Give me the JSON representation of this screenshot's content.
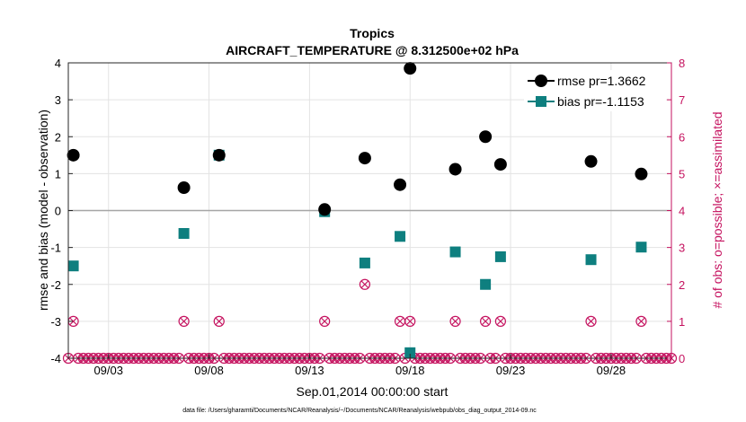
{
  "chart_data": {
    "type": "scatter",
    "title": "Tropics",
    "subtitle": "AIRCRAFT_TEMPERATURE @ 8.312500e+02 hPa",
    "xlabel": "Sep.01,2014 00:00:00 start",
    "ylabel": "rmse and bias (model - observation)",
    "ylabel_right": "# of obs: o=possible; ×=assimilated",
    "footnote": "data file: /Users/gharamti/Documents/NCAR/Reanalysis/~/Documents/NCAR/Reanalysis/webpub/obs_diag_output_2014-09.nc",
    "xlim": [
      1.0,
      31.0
    ],
    "ylim": [
      -4,
      4
    ],
    "ylim_right": [
      0,
      8
    ],
    "x_ticks": [
      3,
      8,
      13,
      18,
      23,
      28
    ],
    "x_tick_labels": [
      "09/03",
      "09/08",
      "09/13",
      "09/18",
      "09/23",
      "09/28"
    ],
    "y_ticks": [
      -4,
      -3,
      -2,
      -1,
      0,
      1,
      2,
      3,
      4
    ],
    "y_tick_labels": [
      "-4",
      "-3",
      "-2",
      "-1",
      "0",
      "1",
      "2",
      "3",
      "4"
    ],
    "y_right_ticks": [
      0,
      1,
      2,
      3,
      4,
      5,
      6,
      7,
      8
    ],
    "y_right_tick_labels": [
      "0",
      "1",
      "2",
      "3",
      "4",
      "5",
      "6",
      "7",
      "8"
    ],
    "legend_position": "top-right",
    "series": [
      {
        "name": "rmse",
        "legend": "rmse pr=1.3662",
        "color": "#000000",
        "marker": "circle",
        "x": [
          1.25,
          6.75,
          8.5,
          13.75,
          15.75,
          17.5,
          18.0,
          20.25,
          21.75,
          22.5,
          27.0,
          29.5
        ],
        "y": [
          1.5,
          0.62,
          1.5,
          0.03,
          1.42,
          0.7,
          3.85,
          1.12,
          2.0,
          1.25,
          1.33,
          0.99
        ]
      },
      {
        "name": "bias",
        "legend": "bias pr=-1.1153",
        "color": "#0e7f7f",
        "marker": "square",
        "x": [
          1.25,
          6.75,
          8.5,
          13.75,
          15.75,
          17.5,
          18.0,
          20.25,
          21.75,
          22.5,
          27.0,
          29.5
        ],
        "y": [
          -1.5,
          -0.62,
          1.5,
          -0.03,
          -1.42,
          -0.7,
          -3.85,
          -1.12,
          -2.0,
          -1.25,
          -1.33,
          -0.99
        ]
      },
      {
        "name": "obs_possible",
        "axis": "right",
        "color": "#c5125f",
        "marker": "circle-open",
        "x": [
          1.25,
          6.75,
          8.5,
          13.75,
          15.75,
          17.5,
          18.0,
          20.25,
          21.75,
          22.5,
          27.0,
          29.5
        ],
        "y": [
          1,
          1,
          1,
          1,
          2,
          1,
          1,
          1,
          1,
          1,
          1,
          1
        ]
      },
      {
        "name": "obs_assimilated",
        "axis": "right",
        "color": "#c5125f",
        "marker": "x",
        "x": [
          1.25,
          6.75,
          8.5,
          13.75,
          15.75,
          17.5,
          18.0,
          20.25,
          21.75,
          22.5,
          27.0,
          29.5
        ],
        "y": [
          1,
          1,
          1,
          1,
          2,
          1,
          1,
          1,
          1,
          1,
          1,
          1
        ]
      }
    ],
    "zero_counts_note": "o/x markers at 0 along the bottom for all remaining 6-hour bins"
  }
}
